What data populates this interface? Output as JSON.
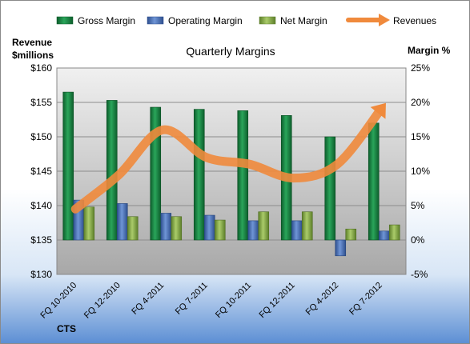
{
  "chart_data": {
    "type": "bar",
    "title": "Quarterly Margins",
    "left_axis_label": [
      "Revenue",
      "$millions"
    ],
    "right_axis_label": "Margin %",
    "company": "CTS",
    "categories": [
      "FQ 10-2010",
      "FQ 12-2010",
      "FQ 4-2011",
      "FQ 7-2011",
      "FQ 10-2011",
      "FQ 12-2011",
      "FQ 4-2012",
      "FQ 7-2012"
    ],
    "left_axis": {
      "min": 130,
      "max": 160,
      "ticks": [
        "$130",
        "$135",
        "$140",
        "$145",
        "$150",
        "$155",
        "$160"
      ]
    },
    "right_axis": {
      "min": -5,
      "max": 25,
      "ticks": [
        "-5%",
        "0%",
        "5%",
        "10%",
        "15%",
        "20%",
        "25%"
      ]
    },
    "grid": true,
    "legend_position": "top",
    "series": [
      {
        "name": "Gross Margin",
        "axis": "right",
        "color": "#1e8a46",
        "values": [
          21.5,
          20.3,
          19.3,
          19.0,
          18.8,
          18.1,
          15.0,
          17.0
        ]
      },
      {
        "name": "Operating Margin",
        "axis": "right",
        "color": "#4a72c0",
        "values": [
          5.8,
          5.3,
          3.9,
          3.6,
          2.8,
          2.8,
          -2.3,
          1.3
        ]
      },
      {
        "name": "Net Margin",
        "axis": "right",
        "color": "#8db04a",
        "values": [
          4.8,
          3.4,
          3.4,
          2.9,
          4.1,
          4.1,
          1.6,
          2.2
        ]
      },
      {
        "name": "Revenues",
        "axis": "left",
        "type": "line",
        "color": "#f08a3c",
        "values": [
          139.5,
          144.5,
          151.0,
          147.0,
          146.0,
          144.0,
          146.0,
          154.0
        ]
      }
    ]
  }
}
